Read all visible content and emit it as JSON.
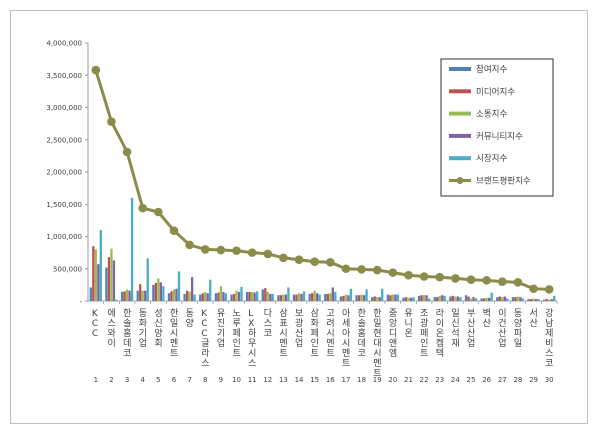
{
  "chart_data": {
    "type": "bar",
    "title": "",
    "xlabel": "",
    "ylabel": "",
    "ylim": [
      0,
      4000000
    ],
    "yticks": [
      "4,000,000",
      "3,500,000",
      "3,000,000",
      "2,500,000",
      "2,000,000",
      "1,500,000",
      "1,000,000",
      "500,000",
      "-"
    ],
    "grid": false,
    "legend_position": "right",
    "categories": [
      "KCC",
      "에스와이",
      "한솔홈데코",
      "동화기업",
      "성신양회",
      "한일시멘트",
      "동양",
      "KCC글라스",
      "유진기업",
      "노루페인트",
      "LX하우시스",
      "다스코",
      "삼표시멘트",
      "보광산업",
      "삼화페인트",
      "고려시멘트",
      "아세아시멘트",
      "한솔홈데코",
      "한일현대시멘트",
      "중앙디앤엠",
      "유니온",
      "조광페인트",
      "라이온켐텍",
      "일신석재",
      "부산산업",
      "벽산",
      "이건산업",
      "동양파일",
      "서산",
      "강남제비스코"
    ],
    "indices": [
      "1",
      "2",
      "3",
      "4",
      "5",
      "6",
      "7",
      "8",
      "9",
      "10",
      "11",
      "12",
      "13",
      "14",
      "15",
      "16",
      "17",
      "18",
      "19",
      "20",
      "21",
      "22",
      "23",
      "24",
      "25",
      "26",
      "27",
      "28",
      "29",
      "30"
    ],
    "series": [
      {
        "name": "참여지수",
        "kind": "bar",
        "color": "#4f81bd",
        "values": [
          210000,
          520000,
          140000,
          160000,
          250000,
          120000,
          110000,
          100000,
          120000,
          100000,
          140000,
          180000,
          90000,
          100000,
          110000,
          110000,
          70000,
          90000,
          60000,
          100000,
          50000,
          80000,
          60000,
          70000,
          90000,
          40000,
          60000,
          60000,
          30000,
          20000
        ]
      },
      {
        "name": "미디어지수",
        "kind": "bar",
        "color": "#c0504d",
        "values": [
          850000,
          680000,
          150000,
          260000,
          280000,
          150000,
          160000,
          120000,
          130000,
          110000,
          140000,
          200000,
          90000,
          100000,
          120000,
          110000,
          80000,
          90000,
          70000,
          90000,
          60000,
          90000,
          60000,
          80000,
          70000,
          40000,
          70000,
          60000,
          30000,
          30000
        ]
      },
      {
        "name": "소통지수",
        "kind": "bar",
        "color": "#9bbb59",
        "values": [
          800000,
          810000,
          180000,
          160000,
          350000,
          180000,
          140000,
          140000,
          230000,
          160000,
          140000,
          140000,
          100000,
          120000,
          160000,
          120000,
          100000,
          100000,
          60000,
          100000,
          50000,
          90000,
          80000,
          70000,
          40000,
          50000,
          60000,
          70000,
          40000,
          20000
        ]
      },
      {
        "name": "커뮤니티지수",
        "kind": "bar",
        "color": "#8064a2",
        "values": [
          570000,
          630000,
          160000,
          160000,
          290000,
          190000,
          370000,
          120000,
          140000,
          140000,
          130000,
          110000,
          100000,
          110000,
          120000,
          210000,
          90000,
          90000,
          60000,
          100000,
          50000,
          90000,
          90000,
          70000,
          60000,
          50000,
          70000,
          60000,
          30000,
          30000
        ]
      },
      {
        "name": "시장지수",
        "kind": "bar",
        "color": "#4bacc6",
        "values": [
          1100000,
          20000,
          1600000,
          660000,
          230000,
          460000,
          100000,
          330000,
          120000,
          220000,
          150000,
          110000,
          210000,
          150000,
          100000,
          140000,
          190000,
          180000,
          190000,
          100000,
          60000,
          40000,
          80000,
          60000,
          40000,
          130000,
          40000,
          40000,
          30000,
          80000
        ]
      },
      {
        "name": "브랜드평판지수",
        "kind": "line",
        "color": "#8b8b4b",
        "values": [
          3580000,
          2780000,
          2310000,
          1440000,
          1380000,
          1090000,
          870000,
          800000,
          790000,
          780000,
          750000,
          730000,
          670000,
          640000,
          610000,
          600000,
          500000,
          490000,
          480000,
          440000,
          400000,
          380000,
          370000,
          350000,
          330000,
          320000,
          300000,
          290000,
          190000,
          180000
        ]
      }
    ]
  }
}
